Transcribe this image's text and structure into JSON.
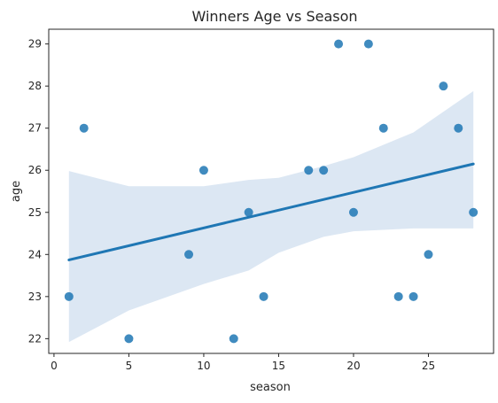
{
  "chart_data": {
    "type": "scatter",
    "title": "Winners Age vs Season",
    "xlabel": "season",
    "ylabel": "age",
    "xlim": [
      -0.35,
      29.35
    ],
    "ylim": [
      21.65,
      29.35
    ],
    "xticks": [
      0,
      5,
      10,
      15,
      20,
      25
    ],
    "yticks": [
      22,
      23,
      24,
      25,
      26,
      27,
      28,
      29
    ],
    "grid": false,
    "legend": "none",
    "points": [
      {
        "x": 1,
        "y": 23
      },
      {
        "x": 2,
        "y": 27
      },
      {
        "x": 5,
        "y": 22
      },
      {
        "x": 9,
        "y": 24
      },
      {
        "x": 10,
        "y": 26
      },
      {
        "x": 12,
        "y": 22
      },
      {
        "x": 13,
        "y": 25
      },
      {
        "x": 14,
        "y": 23
      },
      {
        "x": 17,
        "y": 26
      },
      {
        "x": 18,
        "y": 26
      },
      {
        "x": 19,
        "y": 29
      },
      {
        "x": 20,
        "y": 25
      },
      {
        "x": 21,
        "y": 29
      },
      {
        "x": 22,
        "y": 27
      },
      {
        "x": 23,
        "y": 23
      },
      {
        "x": 24,
        "y": 23
      },
      {
        "x": 25,
        "y": 24
      },
      {
        "x": 26,
        "y": 28
      },
      {
        "x": 27,
        "y": 27
      },
      {
        "x": 28,
        "y": 25
      }
    ],
    "regression_line": {
      "x": [
        1,
        28
      ],
      "y": [
        23.87,
        26.15
      ]
    },
    "confidence_band": {
      "x": [
        1,
        5,
        10,
        13,
        15,
        18,
        20,
        24,
        28
      ],
      "lower": [
        21.92,
        22.67,
        23.3,
        23.62,
        24.04,
        24.42,
        24.55,
        24.62,
        24.62
      ],
      "upper": [
        25.98,
        25.62,
        25.62,
        25.77,
        25.82,
        26.1,
        26.31,
        26.9,
        27.88
      ]
    },
    "colors": {
      "points": "#1f77b4",
      "line": "#1f77b4",
      "band": "#dce7f3",
      "axis": "#262626"
    }
  }
}
